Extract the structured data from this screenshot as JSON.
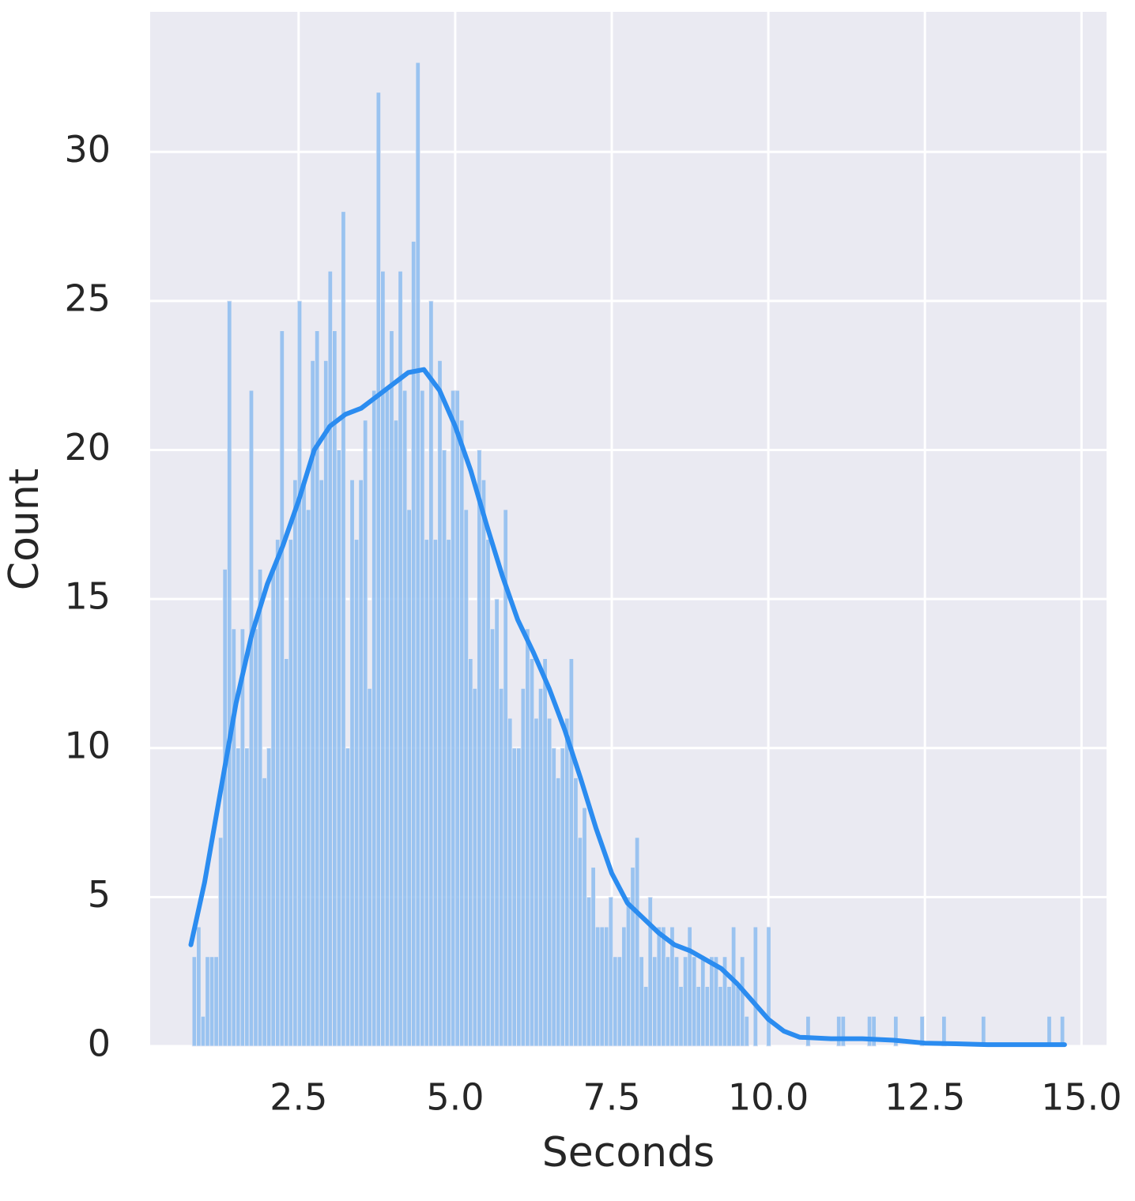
{
  "chart_data": {
    "type": "histogram",
    "x_label": "Seconds",
    "y_label": "Count",
    "bins": [
      0.8,
      0.87,
      0.94,
      1.01,
      1.08,
      1.15,
      1.22,
      1.29,
      1.36,
      1.43,
      1.5,
      1.57,
      1.64,
      1.71,
      1.78,
      1.85,
      1.92,
      1.99,
      2.06,
      2.13,
      2.2,
      2.27,
      2.34,
      2.41,
      2.48,
      2.55,
      2.62,
      2.69,
      2.76,
      2.83,
      2.9,
      2.97,
      3.04,
      3.11,
      3.18,
      3.25,
      3.32,
      3.39,
      3.46,
      3.53,
      3.6,
      3.67,
      3.74,
      3.81,
      3.88,
      3.95,
      4.02,
      4.09,
      4.16,
      4.23,
      4.3,
      4.37,
      4.44,
      4.51,
      4.58,
      4.65,
      4.72,
      4.79,
      4.86,
      4.93,
      5,
      5.07,
      5.14,
      5.21,
      5.28,
      5.35,
      5.42,
      5.49,
      5.56,
      5.63,
      5.7,
      5.77,
      5.84,
      5.91,
      5.98,
      6.05,
      6.12,
      6.19,
      6.26,
      6.33,
      6.4,
      6.47,
      6.54,
      6.61,
      6.68,
      6.75,
      6.82,
      6.89,
      6.96,
      7.03,
      7.1,
      7.17,
      7.24,
      7.31,
      7.38,
      7.45,
      7.52,
      7.59,
      7.66,
      7.73,
      7.8,
      7.87,
      7.94,
      8.01,
      8.08,
      8.15,
      8.22,
      8.29,
      8.36,
      8.43,
      8.5,
      8.57,
      8.64,
      8.71,
      8.78,
      8.85,
      8.92,
      8.99,
      9.06,
      9.13,
      9.2,
      9.27,
      9.34,
      9.41,
      9.48,
      9.55,
      9.62,
      9.69,
      9.76,
      9.83,
      9.9,
      9.97,
      10.04,
      10.11,
      10.18,
      10.25,
      10.32,
      10.39,
      10.46,
      10.53,
      10.6,
      10.67,
      10.74,
      10.81,
      10.88,
      10.95,
      11.02,
      11.09,
      11.16,
      11.23,
      11.3,
      11.37,
      11.44,
      11.51,
      11.58,
      11.65,
      11.72,
      11.79,
      11.86,
      11.93,
      12,
      12.07,
      12.14,
      12.21,
      12.28,
      12.35,
      12.42,
      12.49,
      12.56,
      12.63,
      12.7,
      12.77,
      12.84,
      12.91,
      12.98,
      13.05,
      13.12,
      13.19,
      13.26,
      13.33,
      13.4,
      13.47,
      13.54,
      13.61,
      13.68,
      13.75,
      13.82,
      13.89,
      13.96,
      14.03,
      14.1,
      14.17,
      14.24,
      14.31,
      14.38,
      14.45,
      14.52,
      14.59,
      14.66,
      14.73,
      14.8
    ],
    "counts": [
      3,
      4,
      1,
      3,
      3,
      3,
      7,
      16,
      25,
      14,
      10,
      14,
      10,
      22,
      14,
      16,
      9,
      10,
      16,
      17,
      24,
      13,
      17,
      19,
      25,
      19,
      18,
      23,
      24,
      19,
      23,
      26,
      24,
      20,
      28,
      10,
      19,
      17,
      19,
      21,
      12,
      22,
      32,
      26,
      22,
      24,
      21,
      26,
      22,
      18,
      27,
      33,
      22,
      17,
      25,
      17,
      23,
      20,
      17,
      22,
      22,
      21,
      18,
      13,
      12,
      20,
      19,
      17,
      14,
      15,
      12,
      18,
      11,
      10,
      10,
      12,
      14,
      13,
      11,
      12,
      13,
      11,
      10,
      9,
      10,
      11,
      13,
      9,
      7,
      8,
      5,
      6,
      4,
      4,
      4,
      5,
      3,
      3,
      4,
      5,
      6,
      7,
      3,
      2,
      5,
      3,
      4,
      4,
      3,
      4,
      3,
      2,
      3,
      4,
      3,
      2,
      3,
      2,
      3,
      3,
      2,
      3,
      2,
      4,
      2,
      3,
      1,
      0,
      4,
      0,
      0,
      4,
      0,
      0,
      0,
      0,
      0,
      0,
      0,
      0,
      1,
      0,
      0,
      0,
      0,
      0,
      0,
      1,
      1,
      0,
      0,
      0,
      0,
      0,
      1,
      1,
      0,
      0,
      0,
      0,
      1,
      0,
      0,
      0,
      0,
      0,
      1,
      0,
      0,
      0,
      0,
      1,
      0,
      0,
      0,
      0,
      0,
      0,
      0,
      0,
      1,
      0,
      0,
      0,
      0,
      0,
      0,
      0,
      0,
      0,
      0,
      0,
      0,
      0,
      0,
      1,
      0,
      0,
      1,
      0
    ],
    "color": "#8cbcf0",
    "kde": {
      "color": "#2b8cf0",
      "x": [
        0.78,
        1.0,
        1.25,
        1.5,
        1.75,
        2.0,
        2.25,
        2.5,
        2.75,
        3.0,
        3.25,
        3.5,
        3.75,
        4.0,
        4.25,
        4.5,
        4.75,
        5.0,
        5.25,
        5.5,
        5.75,
        6.0,
        6.25,
        6.5,
        6.75,
        7.0,
        7.25,
        7.5,
        7.75,
        8.0,
        8.25,
        8.5,
        8.75,
        9.0,
        9.25,
        9.5,
        9.75,
        10.0,
        10.25,
        10.5,
        11.0,
        11.5,
        12.0,
        12.5,
        13.0,
        13.5,
        14.0,
        14.5,
        14.73
      ],
      "y": [
        3.4,
        5.5,
        8.5,
        11.5,
        13.8,
        15.5,
        16.8,
        18.3,
        20.0,
        20.8,
        21.2,
        21.4,
        21.8,
        22.2,
        22.6,
        22.7,
        22.0,
        20.8,
        19.3,
        17.5,
        15.8,
        14.3,
        13.2,
        12.0,
        10.6,
        9.0,
        7.3,
        5.8,
        4.8,
        4.3,
        3.8,
        3.4,
        3.2,
        2.9,
        2.6,
        2.1,
        1.5,
        0.9,
        0.5,
        0.3,
        0.25,
        0.25,
        0.2,
        0.1,
        0.08,
        0.05,
        0.05,
        0.05,
        0.05
      ]
    },
    "xlim": [
      0.13,
      15.4
    ],
    "ylim": [
      0,
      34.7
    ],
    "xticks": [
      2.5,
      {
        "value": 5,
        "label": "5.0"
      },
      7.5,
      {
        "value": 10,
        "label": "10.0"
      },
      12.5,
      {
        "value": 15,
        "label": "15.0"
      }
    ],
    "yticks": [
      0,
      5,
      10,
      15,
      20,
      25,
      30
    ],
    "grid": true
  }
}
